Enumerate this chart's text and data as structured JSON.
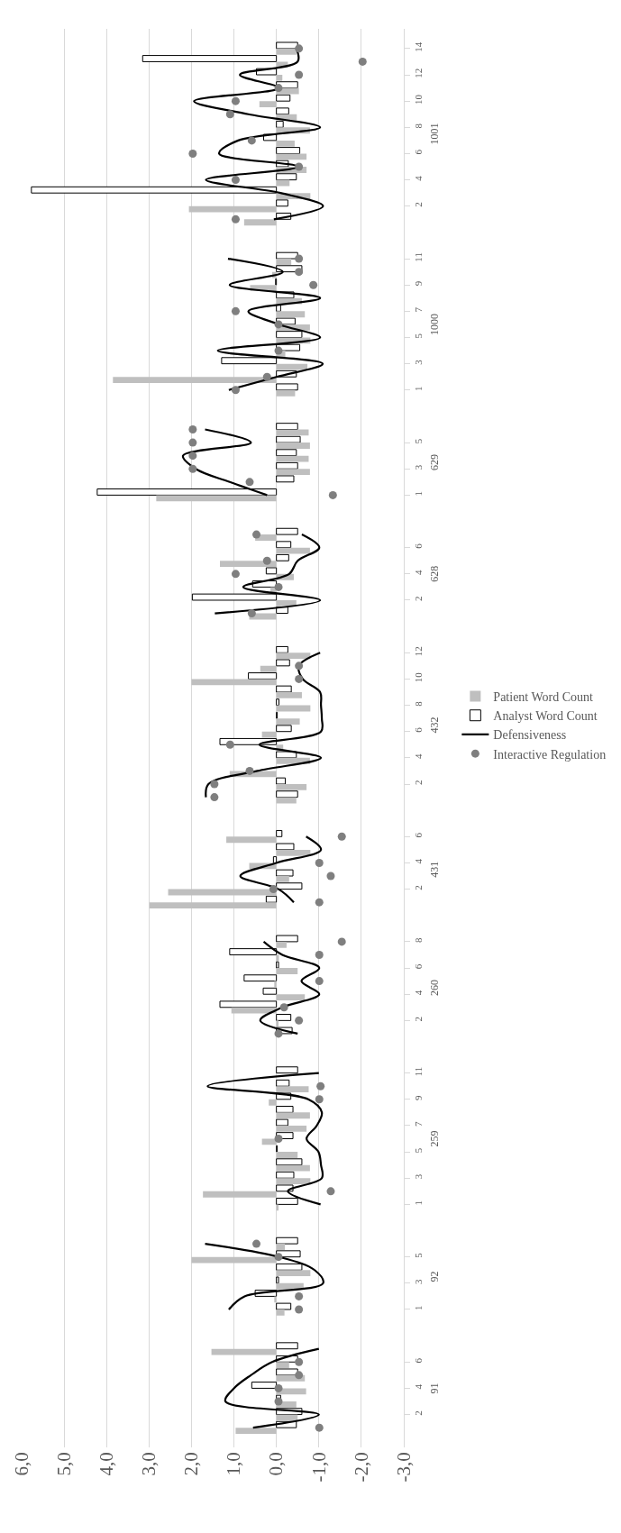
{
  "chart_data": [
    {
      "type": "bar",
      "orientation": "horizontal",
      "ylabel": "1001",
      "categories": [
        "14",
        null,
        "12",
        null,
        "10",
        null,
        "8",
        null,
        "6",
        null,
        "4",
        null,
        "2",
        null
      ],
      "xlim": [
        6,
        -3
      ],
      "xticks": [
        6,
        5,
        4,
        3,
        2,
        1,
        0,
        -1,
        -2,
        -3
      ],
      "grid": "x",
      "tick_labels": "y",
      "series": [
        {
          "color": "#ffffff",
          "values": [
            -0.5,
            3.15,
            0.47,
            -0.5,
            -0.32,
            -0.29,
            -0.16,
            0.3,
            -0.55,
            -0.28,
            -0.47,
            5.77,
            -0.27,
            -0.34
          ]
        },
        {
          "color": "#bfbfbf",
          "values": [
            -0.47,
            -0.27,
            -0.14,
            -0.53,
            0.4,
            -0.48,
            -0.79,
            -0.43,
            -0.71,
            -0.71,
            -0.31,
            -0.8,
            2.06,
            0.76
          ]
        },
        {
          "type": "line",
          "color": "#000000",
          "values": [
            -0.47,
            -0.5,
            0.86,
            -0.05,
            1.94,
            0.66,
            -1.03,
            0.9,
            1.35,
            -0.5,
            1.66,
            -0.1,
            -1.1,
            0.06
          ]
        },
        {
          "type": "scatter",
          "color": "#7f7f7f",
          "marker": "circle",
          "values": [
            -0.53,
            -2.03,
            -0.53,
            -0.05,
            0.96,
            1.09,
            null,
            0.58,
            1.97,
            -0.53,
            0.96,
            null,
            null,
            0.96
          ]
        }
      ]
    },
    {
      "type": "bar",
      "orientation": "horizontal",
      "ylabel": "1000",
      "categories": [
        "11",
        null,
        "9",
        null,
        "7",
        null,
        "5",
        null,
        "3",
        null,
        "1"
      ],
      "xlim": [
        6,
        -3
      ],
      "xticks": [
        6,
        5,
        4,
        3,
        2,
        1,
        0,
        -1,
        -2,
        -3
      ],
      "grid": "x",
      "tick_labels": "y",
      "series": [
        {
          "color": "#ffffff",
          "values": [
            -0.5,
            -0.6,
            0.02,
            -0.41,
            -0.1,
            -0.44,
            -0.6,
            -0.55,
            1.29,
            -0.47,
            -0.5
          ]
        },
        {
          "color": "#bfbfbf",
          "values": [
            -0.35,
            0.1,
            0.62,
            -0.6,
            -0.67,
            -0.79,
            -0.8,
            -0.21,
            -0.73,
            3.85,
            -0.44
          ]
        },
        {
          "type": "line",
          "color": "#000000",
          "values": [
            1.14,
            -0.15,
            1.1,
            -1.03,
            0.66,
            -0.06,
            -1.03,
            1.38,
            -1.09,
            0.0,
            1.12
          ]
        },
        {
          "type": "scatter",
          "color": "#7f7f7f",
          "marker": "circle",
          "values": [
            -0.53,
            -0.53,
            -0.87,
            null,
            0.96,
            -0.05,
            null,
            -0.05,
            null,
            0.22,
            0.96
          ]
        }
      ]
    },
    {
      "type": "bar",
      "orientation": "horizontal",
      "ylabel": "629",
      "categories": [
        null,
        "5",
        null,
        "3",
        null,
        "1"
      ],
      "xlim": [
        6,
        -3
      ],
      "xticks": [
        6,
        5,
        4,
        3,
        2,
        1,
        0,
        -1,
        -2,
        -3
      ],
      "grid": "x",
      "tick_labels": "y",
      "series": [
        {
          "color": "#ffffff",
          "values": [
            -0.5,
            -0.56,
            -0.47,
            -0.5,
            -0.41,
            4.22
          ]
        },
        {
          "color": "#bfbfbf",
          "values": [
            -0.76,
            -0.79,
            -0.76,
            -0.79,
            0.0,
            2.83
          ]
        },
        {
          "type": "line",
          "color": "#000000",
          "values": [
            1.68,
            0.6,
            2.2,
            1.9,
            1.1,
            0.22
          ]
        },
        {
          "type": "scatter",
          "color": "#7f7f7f",
          "marker": "circle",
          "values": [
            1.97,
            1.97,
            1.97,
            1.97,
            0.63,
            -1.33
          ]
        }
      ]
    },
    {
      "type": "bar",
      "orientation": "horizontal",
      "ylabel": "628",
      "categories": [
        null,
        "6",
        null,
        "4",
        null,
        "2",
        null
      ],
      "xlim": [
        6,
        -3
      ],
      "xticks": [
        6,
        5,
        4,
        3,
        2,
        1,
        0,
        -1,
        -2,
        -3
      ],
      "grid": "x",
      "tick_labels": "y",
      "series": [
        {
          "color": "#ffffff",
          "values": [
            -0.5,
            -0.34,
            -0.29,
            0.24,
            0.56,
            1.98,
            -0.27
          ]
        },
        {
          "color": "#bfbfbf",
          "values": [
            0.5,
            -0.79,
            1.33,
            -0.41,
            0.14,
            -0.47,
            0.64
          ]
        },
        {
          "type": "line",
          "color": "#000000",
          "values": [
            -0.6,
            -1.01,
            -0.5,
            -0.3,
            0.78,
            -1.03,
            1.45
          ]
        },
        {
          "type": "scatter",
          "color": "#7f7f7f",
          "marker": "circle",
          "values": [
            0.47,
            null,
            0.22,
            0.96,
            -0.05,
            null,
            0.58
          ]
        }
      ]
    },
    {
      "type": "bar",
      "orientation": "horizontal",
      "ylabel": "432",
      "categories": [
        "12",
        null,
        "10",
        null,
        "8",
        null,
        "6",
        null,
        "4",
        null,
        "2",
        null
      ],
      "xlim": [
        6,
        -3
      ],
      "xticks": [
        6,
        5,
        4,
        3,
        2,
        1,
        0,
        -1,
        -2,
        -3
      ],
      "grid": "x",
      "tick_labels": "y",
      "legend": "right",
      "series": [
        {
          "name": "Analyst Word Count",
          "color": "#ffffff",
          "values": [
            -0.27,
            -0.31,
            0.66,
            -0.35,
            -0.06,
            -0.02,
            -0.35,
            1.33,
            -0.47,
            null,
            -0.21,
            -0.5
          ]
        },
        {
          "name": "Patient Word Count",
          "color": "#bfbfbf",
          "values": [
            -0.8,
            0.38,
            2.0,
            -0.6,
            -0.8,
            -0.55,
            0.34,
            -0.16,
            -0.79,
            1.1,
            -0.71,
            -0.47
          ]
        },
        {
          "type": "line",
          "name": "Defensiveness",
          "color": "#000000",
          "values": [
            -1.03,
            -0.53,
            -0.62,
            -1.03,
            -1.05,
            -1.07,
            -1.05,
            0.4,
            -1.05,
            0.45,
            1.6,
            1.66
          ]
        },
        {
          "type": "scatter",
          "name": "Interactive Regulation",
          "color": "#7f7f7f",
          "marker": "circle",
          "values": [
            null,
            -0.53,
            -0.53,
            null,
            null,
            null,
            null,
            1.09,
            null,
            0.63,
            1.46,
            1.46
          ]
        }
      ]
    },
    {
      "type": "bar",
      "orientation": "horizontal",
      "ylabel": "431",
      "categories": [
        "6",
        null,
        "4",
        null,
        "2",
        null
      ],
      "xlim": [
        6,
        -3
      ],
      "xticks": [
        6,
        5,
        4,
        3,
        2,
        1,
        0,
        -1,
        -2,
        -3
      ],
      "grid": "x",
      "tick_labels": "y",
      "series": [
        {
          "color": "#ffffff",
          "values": [
            -0.13,
            -0.41,
            0.07,
            -0.39,
            -0.6,
            0.24
          ]
        },
        {
          "color": "#bfbfbf",
          "values": [
            1.18,
            -0.8,
            0.64,
            -0.3,
            2.55,
            2.99
          ]
        },
        {
          "type": "line",
          "color": "#000000",
          "values": [
            -0.7,
            -1.05,
            0.0,
            0.85,
            -0.05,
            -0.41
          ]
        },
        {
          "type": "scatter",
          "color": "#7f7f7f",
          "marker": "circle",
          "values": [
            -1.54,
            null,
            -1.01,
            -1.28,
            0.07,
            -1.01
          ]
        }
      ]
    },
    {
      "type": "bar",
      "orientation": "horizontal",
      "ylabel": "260",
      "categories": [
        "8",
        null,
        "6",
        null,
        "4",
        null,
        "2",
        null
      ],
      "xlim": [
        6,
        -3
      ],
      "xticks": [
        6,
        5,
        4,
        3,
        2,
        1,
        0,
        -1,
        -2,
        -3
      ],
      "grid": "x",
      "tick_labels": "y",
      "series": [
        {
          "color": "#ffffff",
          "values": [
            -0.5,
            1.1,
            -0.05,
            0.76,
            0.31,
            1.33,
            -0.34,
            -0.37
          ]
        },
        {
          "color": "#bfbfbf",
          "values": [
            -0.24,
            -0.06,
            -0.5,
            0.05,
            -0.67,
            1.06,
            -0.05,
            null
          ]
        },
        {
          "type": "line",
          "color": "#000000",
          "values": [
            0.3,
            -0.14,
            -1.01,
            -0.59,
            -1.01,
            -0.14,
            0.38,
            -0.5
          ]
        },
        {
          "type": "scatter",
          "color": "#7f7f7f",
          "marker": "circle",
          "values": [
            -1.54,
            -1.01,
            null,
            -1.01,
            null,
            -0.18,
            -0.53,
            -0.05
          ]
        }
      ]
    },
    {
      "type": "bar",
      "orientation": "horizontal",
      "ylabel": "259",
      "categories": [
        "11",
        null,
        "9",
        null,
        "7",
        null,
        "5",
        null,
        "3",
        null,
        "1"
      ],
      "xlim": [
        6,
        -3
      ],
      "xticks": [
        6,
        5,
        4,
        3,
        2,
        1,
        0,
        -1,
        -2,
        -3
      ],
      "grid": "x",
      "tick_labels": "y",
      "series": [
        {
          "color": "#ffffff",
          "values": [
            -0.5,
            -0.3,
            -0.34,
            -0.39,
            -0.27,
            -0.39,
            -0.02,
            -0.6,
            -0.41,
            -0.39,
            -0.5
          ]
        },
        {
          "color": "#bfbfbf",
          "values": [
            null,
            -0.76,
            0.18,
            -0.79,
            -0.71,
            0.34,
            -0.5,
            -0.79,
            -0.8,
            1.73,
            -0.05
          ]
        },
        {
          "type": "line",
          "color": "#000000",
          "values": [
            -1.0,
            1.62,
            -0.75,
            -1.07,
            -0.95,
            -0.71,
            -0.99,
            -1.05,
            -1.07,
            -0.27,
            -1.04
          ]
        },
        {
          "type": "scatter",
          "color": "#7f7f7f",
          "marker": "circle",
          "values": [
            null,
            -1.04,
            -1.01,
            null,
            null,
            -0.05,
            null,
            null,
            null,
            -1.28,
            null
          ]
        }
      ]
    },
    {
      "type": "bar",
      "orientation": "horizontal",
      "ylabel": "92",
      "categories": [
        null,
        "5",
        null,
        "3",
        null,
        "1"
      ],
      "xlim": [
        6,
        -3
      ],
      "xticks": [
        6,
        5,
        4,
        3,
        2,
        1,
        0,
        -1,
        -2,
        -3
      ],
      "grid": "x",
      "tick_labels": "y",
      "series": [
        {
          "color": "#ffffff",
          "values": [
            -0.5,
            -0.56,
            -0.6,
            -0.05,
            0.5,
            -0.34
          ]
        },
        {
          "color": "#bfbfbf",
          "values": [
            -0.2,
            2.0,
            -0.8,
            -0.64,
            0.05,
            -0.19
          ]
        },
        {
          "type": "line",
          "color": "#000000",
          "values": [
            1.68,
            -0.06,
            -0.9,
            -1.1,
            0.75,
            1.12
          ]
        },
        {
          "type": "scatter",
          "color": "#7f7f7f",
          "marker": "circle",
          "values": [
            0.47,
            -0.05,
            null,
            null,
            -0.53,
            -0.53
          ]
        }
      ]
    },
    {
      "type": "bar",
      "orientation": "horizontal",
      "ylabel": "91",
      "categories": [
        null,
        "6",
        null,
        "4",
        null,
        "2",
        null
      ],
      "xlim": [
        6,
        -3
      ],
      "xticks": [
        {
          "value": 6,
          "label": "6,0"
        },
        {
          "value": 5,
          "label": "5,0"
        },
        {
          "value": 4,
          "label": "4,0"
        },
        {
          "value": 3,
          "label": "3,0"
        },
        {
          "value": 2,
          "label": "2,0"
        },
        {
          "value": 1,
          "label": "1,0"
        },
        {
          "value": 0,
          "label": "0,0"
        },
        {
          "value": -1,
          "label": "-1,0"
        },
        {
          "value": -2,
          "label": "-2,0"
        },
        {
          "value": -3,
          "label": "-3,0"
        }
      ],
      "grid": "x",
      "series": [
        {
          "color": "#ffffff",
          "values": [
            -0.5,
            -0.5,
            -0.5,
            0.58,
            -0.1,
            -0.6,
            -0.47
          ]
        },
        {
          "color": "#bfbfbf",
          "values": [
            1.53,
            -0.3,
            -0.67,
            -0.7,
            -0.47,
            -0.5,
            0.96
          ]
        },
        {
          "type": "line",
          "color": "#000000",
          "values": [
            -1.0,
            0.1,
            0.6,
            1.0,
            1.2,
            -1.0,
            0.55
          ]
        },
        {
          "type": "scatter",
          "color": "#7f7f7f",
          "marker": "circle",
          "values": [
            null,
            -0.53,
            -0.53,
            -0.05,
            -0.05,
            null,
            -1.01
          ]
        }
      ]
    }
  ]
}
